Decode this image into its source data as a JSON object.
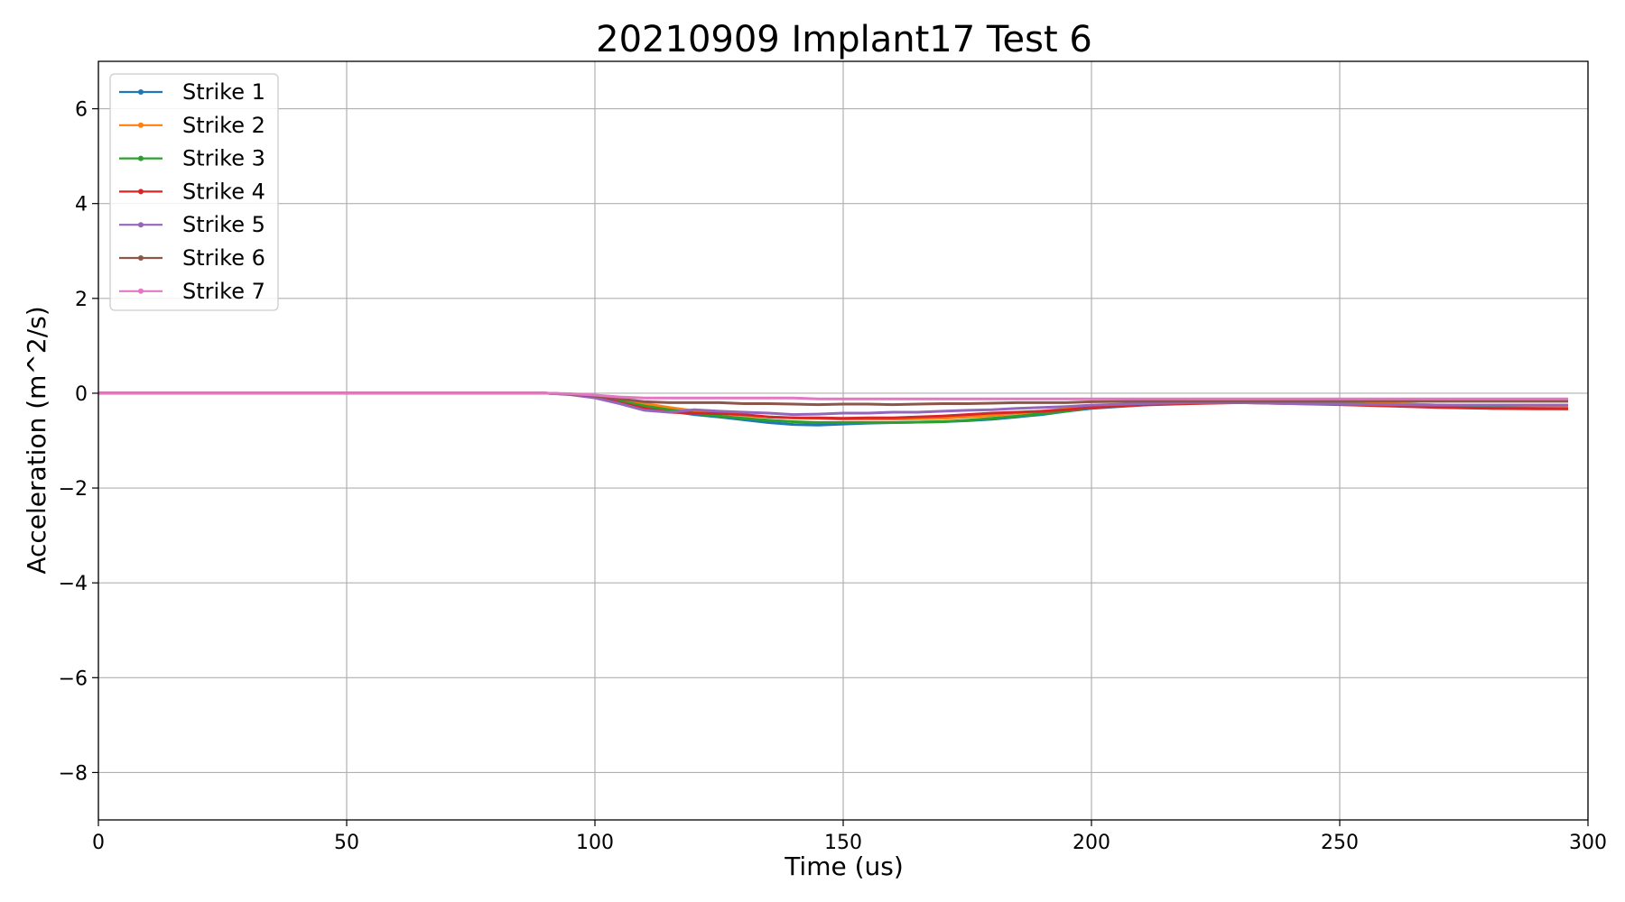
{
  "chart_data": {
    "type": "line",
    "title": "20210909 Implant17 Test 6",
    "xlabel": "Time (us)",
    "ylabel": "Acceleration (m^2/s)",
    "xlim": [
      0,
      300
    ],
    "ylim": [
      -9,
      7
    ],
    "xticks": [
      0,
      50,
      100,
      150,
      200,
      250,
      300
    ],
    "yticks": [
      -8,
      -6,
      -4,
      -2,
      0,
      2,
      4,
      6
    ],
    "xtick_labels": [
      "0",
      "50",
      "100",
      "150",
      "200",
      "250",
      "300"
    ],
    "ytick_labels": [
      "−8",
      "−6",
      "−4",
      "−2",
      "0",
      "2",
      "4",
      "6"
    ],
    "grid": true,
    "legend_position": "top-left",
    "x": [
      0,
      90,
      95,
      100,
      105,
      110,
      115,
      120,
      125,
      130,
      135,
      140,
      145,
      150,
      155,
      160,
      165,
      170,
      175,
      180,
      185,
      190,
      195,
      200,
      210,
      220,
      230,
      240,
      250,
      260,
      270,
      280,
      290,
      296
    ],
    "series": [
      {
        "name": "Strike 1",
        "color": "#1f77b4",
        "values": [
          0,
          0,
          -0.02,
          -0.08,
          -0.2,
          -0.3,
          -0.38,
          -0.45,
          -0.5,
          -0.56,
          -0.62,
          -0.66,
          -0.67,
          -0.65,
          -0.63,
          -0.62,
          -0.61,
          -0.6,
          -0.58,
          -0.55,
          -0.5,
          -0.45,
          -0.38,
          -0.32,
          -0.25,
          -0.2,
          -0.18,
          -0.18,
          -0.2,
          -0.22,
          -0.25,
          -0.28,
          -0.3,
          -0.3
        ]
      },
      {
        "name": "Strike 2",
        "color": "#ff7f0e",
        "values": [
          0,
          0,
          -0.02,
          -0.06,
          -0.15,
          -0.22,
          -0.3,
          -0.37,
          -0.42,
          -0.47,
          -0.5,
          -0.52,
          -0.53,
          -0.55,
          -0.55,
          -0.55,
          -0.54,
          -0.53,
          -0.5,
          -0.47,
          -0.42,
          -0.38,
          -0.33,
          -0.28,
          -0.22,
          -0.18,
          -0.17,
          -0.18,
          -0.2,
          -0.22,
          -0.25,
          -0.28,
          -0.3,
          -0.3
        ]
      },
      {
        "name": "Strike 3",
        "color": "#2ca02c",
        "values": [
          0,
          0,
          -0.02,
          -0.07,
          -0.17,
          -0.27,
          -0.35,
          -0.42,
          -0.48,
          -0.53,
          -0.57,
          -0.6,
          -0.62,
          -0.62,
          -0.62,
          -0.62,
          -0.61,
          -0.6,
          -0.57,
          -0.53,
          -0.48,
          -0.43,
          -0.38,
          -0.3,
          -0.24,
          -0.2,
          -0.18,
          -0.2,
          -0.22,
          -0.25,
          -0.27,
          -0.3,
          -0.32,
          -0.33
        ]
      },
      {
        "name": "Strike 4",
        "color": "#d62728",
        "values": [
          0,
          0,
          -0.02,
          -0.08,
          -0.2,
          -0.32,
          -0.4,
          -0.42,
          -0.43,
          -0.45,
          -0.5,
          -0.52,
          -0.52,
          -0.53,
          -0.52,
          -0.52,
          -0.5,
          -0.48,
          -0.45,
          -0.42,
          -0.4,
          -0.38,
          -0.35,
          -0.3,
          -0.25,
          -0.22,
          -0.2,
          -0.22,
          -0.24,
          -0.27,
          -0.3,
          -0.32,
          -0.33,
          -0.33
        ]
      },
      {
        "name": "Strike 5",
        "color": "#9467bd",
        "values": [
          0,
          0,
          -0.03,
          -0.1,
          -0.22,
          -0.36,
          -0.4,
          -0.35,
          -0.38,
          -0.4,
          -0.42,
          -0.45,
          -0.44,
          -0.42,
          -0.42,
          -0.4,
          -0.4,
          -0.38,
          -0.36,
          -0.35,
          -0.32,
          -0.3,
          -0.28,
          -0.25,
          -0.22,
          -0.2,
          -0.2,
          -0.22,
          -0.23,
          -0.24,
          -0.25,
          -0.25,
          -0.25,
          -0.25
        ]
      },
      {
        "name": "Strike 6",
        "color": "#8c564b",
        "values": [
          0,
          0,
          -0.02,
          -0.06,
          -0.12,
          -0.18,
          -0.2,
          -0.2,
          -0.2,
          -0.22,
          -0.22,
          -0.23,
          -0.24,
          -0.23,
          -0.23,
          -0.24,
          -0.23,
          -0.22,
          -0.22,
          -0.21,
          -0.2,
          -0.2,
          -0.2,
          -0.18,
          -0.17,
          -0.17,
          -0.17,
          -0.17,
          -0.17,
          -0.17,
          -0.17,
          -0.17,
          -0.17,
          -0.17
        ]
      },
      {
        "name": "Strike 7",
        "color": "#e377c2",
        "values": [
          0,
          0,
          -0.01,
          -0.04,
          -0.08,
          -0.1,
          -0.1,
          -0.1,
          -0.1,
          -0.1,
          -0.1,
          -0.1,
          -0.12,
          -0.12,
          -0.12,
          -0.12,
          -0.12,
          -0.12,
          -0.12,
          -0.12,
          -0.12,
          -0.12,
          -0.12,
          -0.12,
          -0.12,
          -0.12,
          -0.12,
          -0.12,
          -0.12,
          -0.12,
          -0.12,
          -0.12,
          -0.12,
          -0.12
        ]
      }
    ]
  }
}
